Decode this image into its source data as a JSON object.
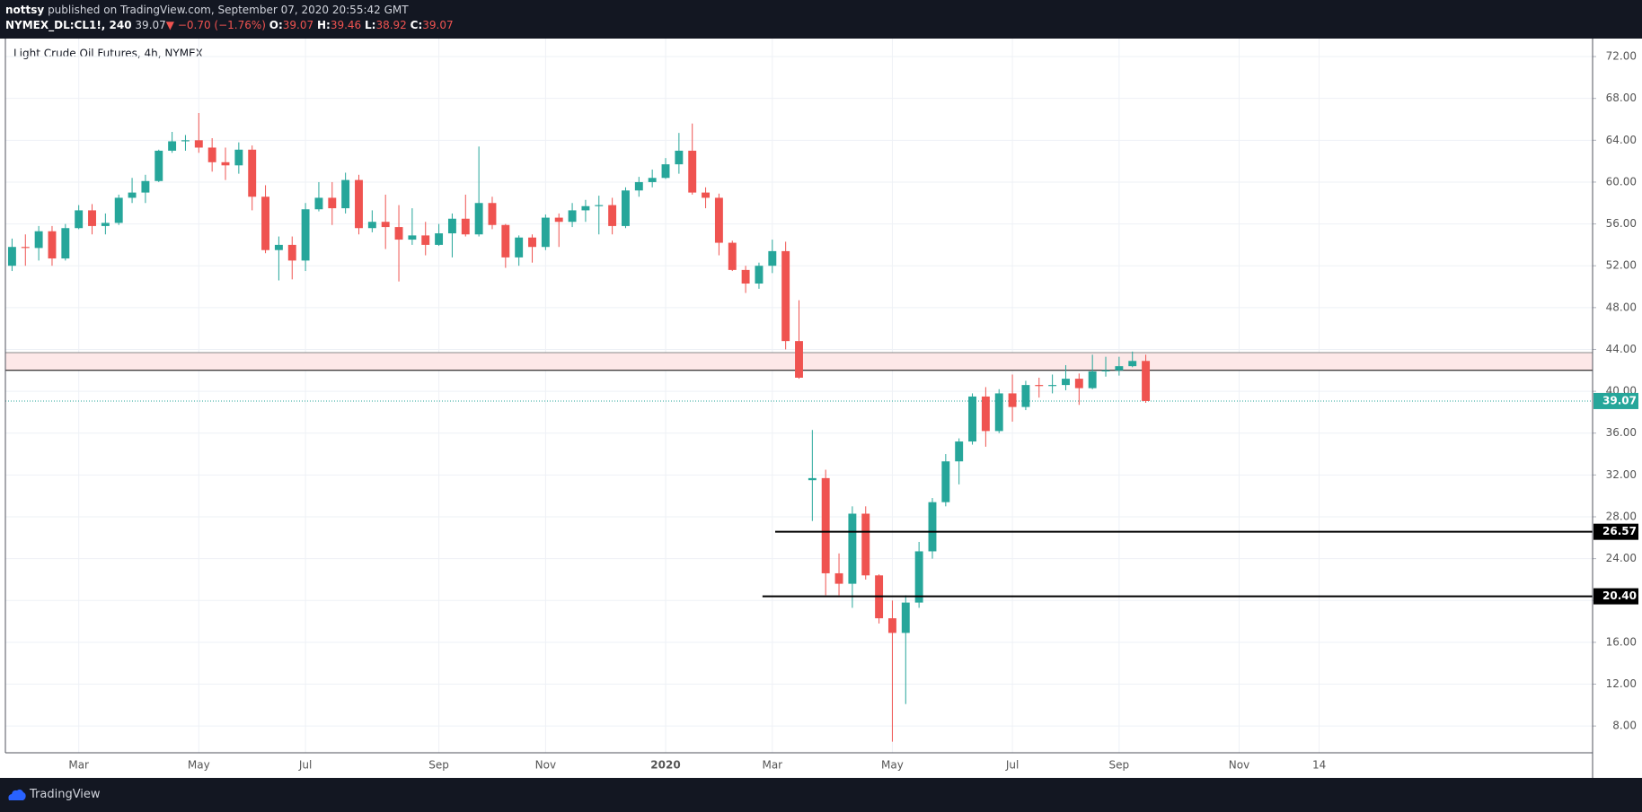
{
  "header": {
    "author": "nottsy",
    "published": "published on TradingView.com, September 07, 2020 20:55:42 GMT",
    "symbol": "NYMEX_DL:CL1!, 240",
    "last": "39.07",
    "change": "▼ −0.70 (−1.76%)",
    "ohlc": [
      {
        "key": "O:",
        "value": "39.07"
      },
      {
        "key": "H:",
        "value": "39.46"
      },
      {
        "key": "L:",
        "value": "38.92"
      },
      {
        "key": "C:",
        "value": "39.07"
      }
    ]
  },
  "chart_data": {
    "type": "candlestick",
    "title": "Light Crude Oil Futures, 4h, NYMEX",
    "categories": [
      null,
      null,
      null,
      null,
      null,
      "Mar",
      null,
      null,
      null,
      null,
      null,
      null,
      null,
      null,
      "May",
      null,
      null,
      null,
      null,
      null,
      null,
      null,
      "Jul",
      null,
      null,
      null,
      null,
      null,
      null,
      null,
      null,
      null,
      "Sep",
      null,
      null,
      null,
      null,
      null,
      null,
      null,
      "Nov",
      null,
      null,
      null,
      null,
      null,
      null,
      null,
      null,
      "2020",
      null,
      null,
      null,
      null,
      null,
      null,
      null,
      "Mar",
      null,
      null,
      null,
      null,
      null,
      null,
      null,
      null,
      "May",
      null,
      null,
      null,
      null,
      null,
      null,
      null,
      null,
      "Jul",
      null,
      null,
      null,
      null,
      null,
      null,
      null,
      "Sep",
      null,
      null,
      null,
      null,
      null,
      null,
      null,
      null,
      "Nov",
      null,
      null,
      null,
      null,
      null,
      "14",
      null,
      null,
      null,
      null,
      null,
      null,
      null,
      null,
      null,
      null,
      null,
      null,
      null,
      null,
      null,
      null,
      null,
      null,
      null,
      null
    ],
    "open": [
      52,
      53.8,
      53.7,
      55.3,
      52.7,
      55.6,
      57.3,
      55.8,
      56.1,
      58.5,
      59,
      60.1,
      63,
      63.9,
      64,
      63.3,
      61.9,
      61.6,
      63.1,
      58.6,
      53.5,
      54,
      52.5,
      57.4,
      58.5,
      57.5,
      60.2,
      55.6,
      56.2,
      55.7,
      54.5,
      54.9,
      54,
      55.1,
      56.5,
      55,
      58,
      55.9,
      52.8,
      54.7,
      53.8,
      56.6,
      56.2,
      57.3,
      57.7,
      57.8,
      55.8,
      59.2,
      60,
      60.4,
      61.7,
      63,
      59,
      58.5,
      54.2,
      51.6,
      50.3,
      52,
      53.4,
      44.8,
      31.5,
      31.7,
      22.6,
      21.6,
      28.3,
      22.4,
      18.3,
      16.9,
      19.8,
      24.7,
      29.4,
      33.3,
      35.2,
      39.5,
      36.2,
      39.8,
      38.5,
      40.6,
      40.5,
      40.6,
      41.2,
      40.3,
      41.9,
      42,
      42.4,
      42.9,
      null,
      null,
      null,
      null,
      null,
      null,
      null,
      null,
      null,
      null,
      null,
      null,
      null,
      null,
      null,
      null,
      null,
      null,
      null,
      null,
      null,
      null,
      null,
      null,
      null,
      null,
      null,
      null,
      null,
      null,
      null,
      null,
      null
    ],
    "high": [
      54.6,
      55,
      55.8,
      55.8,
      56,
      57.8,
      57.9,
      57,
      58.8,
      60.4,
      60.7,
      63.1,
      64.8,
      64.5,
      66.6,
      64.2,
      63.3,
      63.8,
      63.5,
      59.7,
      54.8,
      54.8,
      58,
      60,
      60,
      60.9,
      60.7,
      57.3,
      58.8,
      57.8,
      57.5,
      56.2,
      56,
      57,
      58.8,
      63.4,
      58.6,
      56,
      54.9,
      55,
      56.9,
      57,
      58,
      58.3,
      58.7,
      58.5,
      59.5,
      60.5,
      61.2,
      62.3,
      64.7,
      65.6,
      59.5,
      58.9,
      54.4,
      52,
      52.3,
      54.5,
      54.3,
      48.7,
      36.3,
      32.5,
      24.5,
      29,
      29,
      22.5,
      20,
      20.5,
      25.6,
      29.8,
      34,
      35.5,
      39.8,
      40.4,
      40.2,
      41.6,
      41,
      41.3,
      41.6,
      42.5,
      41.7,
      43.5,
      43.3,
      43.3,
      43.8,
      43.5,
      null,
      null,
      null,
      null,
      null,
      null,
      null,
      null,
      null,
      null,
      null,
      null,
      null,
      null,
      null,
      null,
      null,
      null,
      null,
      null,
      null,
      null,
      null,
      null,
      null,
      null,
      null,
      null,
      null,
      null,
      null,
      null,
      null
    ],
    "low": [
      51.5,
      52,
      52.5,
      52,
      52.5,
      55.5,
      55,
      55,
      55.9,
      58,
      58,
      60,
      62.8,
      63,
      62.8,
      61,
      60.2,
      60.8,
      57.3,
      53.2,
      50.6,
      50.7,
      51.5,
      57.2,
      55.9,
      57,
      55,
      55.2,
      53.6,
      50.5,
      54,
      53,
      53.9,
      52.8,
      54.8,
      54.8,
      55.5,
      51.8,
      52,
      52.3,
      53.5,
      53.8,
      55.7,
      56.2,
      55,
      55,
      55.6,
      58.6,
      59.5,
      60.3,
      60.8,
      58.8,
      57.5,
      53,
      51.5,
      49.4,
      49.8,
      51.3,
      44,
      41.2,
      27.6,
      20.5,
      20.5,
      19.3,
      22,
      17.8,
      6.5,
      10.1,
      19.3,
      24,
      29,
      31.1,
      34.9,
      34.7,
      36,
      37.1,
      38.2,
      39.4,
      39.8,
      40.1,
      38.7,
      40.2,
      41.4,
      41.5,
      42.3,
      38.9,
      null,
      null,
      null,
      null,
      null,
      null,
      null,
      null,
      null,
      null,
      null,
      null,
      null,
      null,
      null,
      null,
      null,
      null,
      null,
      null,
      null,
      null,
      null,
      null,
      null,
      null,
      null,
      null,
      null,
      null,
      null,
      null,
      null
    ],
    "close": [
      53.8,
      53.7,
      55.3,
      52.7,
      55.6,
      57.3,
      55.8,
      56.1,
      58.5,
      59,
      60.1,
      63,
      63.9,
      64,
      63.3,
      61.9,
      61.6,
      63.1,
      58.6,
      53.5,
      54,
      52.5,
      57.4,
      58.5,
      57.5,
      60.2,
      55.6,
      56.2,
      55.7,
      54.5,
      54.9,
      54,
      55.1,
      56.5,
      55,
      58,
      55.9,
      52.8,
      54.7,
      53.8,
      56.6,
      56.2,
      57.3,
      57.7,
      57.8,
      55.8,
      59.2,
      60,
      60.4,
      61.7,
      63,
      59,
      58.5,
      54.2,
      51.6,
      50.3,
      52,
      53.4,
      44.8,
      41.3,
      31.7,
      22.6,
      21.6,
      28.3,
      22.4,
      18.3,
      16.9,
      19.8,
      24.7,
      29.4,
      33.3,
      35.2,
      39.5,
      36.2,
      39.8,
      38.5,
      40.6,
      40.5,
      40.6,
      41.2,
      40.3,
      41.9,
      42,
      42.4,
      42.9,
      39.07,
      null,
      null,
      null,
      null,
      null,
      null,
      null,
      null,
      null,
      null,
      null,
      null,
      null,
      null,
      null,
      null,
      null,
      null,
      null,
      null,
      null,
      null,
      null,
      null,
      null,
      null,
      null,
      null,
      null,
      null,
      null,
      null,
      null
    ],
    "up_color": "#26a69a",
    "down_color": "#ef5350",
    "ylim": [
      5.44,
      73.72
    ],
    "yticks": [
      {
        "value": 8,
        "label": "8.00"
      },
      {
        "value": 12,
        "label": "12.00"
      },
      {
        "value": 16,
        "label": "16.00"
      },
      {
        "value": 20,
        "label": "20.00"
      },
      {
        "value": 24,
        "label": "24.00"
      },
      {
        "value": 28,
        "label": "28.00"
      },
      {
        "value": 32,
        "label": "32.00"
      },
      {
        "value": 36,
        "label": "36.00"
      },
      {
        "value": 40,
        "label": "40.00"
      },
      {
        "value": 44,
        "label": "44.00"
      },
      {
        "value": 48,
        "label": "48.00"
      },
      {
        "value": 52,
        "label": "52.00"
      },
      {
        "value": 56,
        "label": "56.00"
      },
      {
        "value": 60,
        "label": "60.00"
      },
      {
        "value": 64,
        "label": "64.00"
      },
      {
        "value": 68,
        "label": "68.00"
      },
      {
        "value": 72,
        "label": "72.00"
      }
    ],
    "grid": true,
    "last_price": 39.07,
    "last_color": "#26a69a",
    "zone": [
      42,
      43.7
    ],
    "zone_color": "#fde8e8",
    "levels": {
      "values": [
        26.57,
        20.4
      ],
      "value_labels": [
        "26.57",
        "20.40"
      ],
      "color": "#000000"
    }
  },
  "footer": {
    "brand": "TradingView"
  }
}
